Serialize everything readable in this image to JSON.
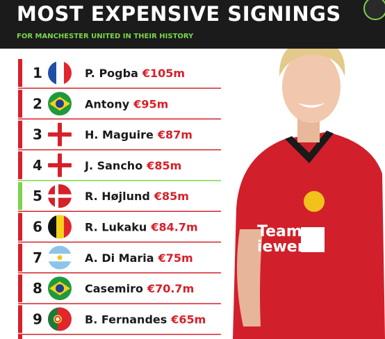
{
  "header": {
    "title": "MOST EXPENSIVE SIGNINGS",
    "subtitle": "FOR MANCHESTER UNITED IN THEIR HISTORY"
  },
  "list": {
    "items": [
      {
        "rank": "1",
        "name": "P. Pogba",
        "fee": "€105m"
      },
      {
        "rank": "2",
        "name": "Antony",
        "fee": "€95m"
      },
      {
        "rank": "3",
        "name": "H. Maguire",
        "fee": "€87m"
      },
      {
        "rank": "4",
        "name": "J. Sancho",
        "fee": "€85m"
      },
      {
        "rank": "5",
        "name": "R. Højlund",
        "fee": "€85m"
      },
      {
        "rank": "6",
        "name": "R. Lukaku",
        "fee": "€84.7m"
      },
      {
        "rank": "7",
        "name": "A. Di Maria",
        "fee": "€75m"
      },
      {
        "rank": "8",
        "name": "Casemiro",
        "fee": "€70.7m"
      },
      {
        "rank": "9",
        "name": "B. Fernandes",
        "fee": "€65m"
      }
    ]
  }
}
